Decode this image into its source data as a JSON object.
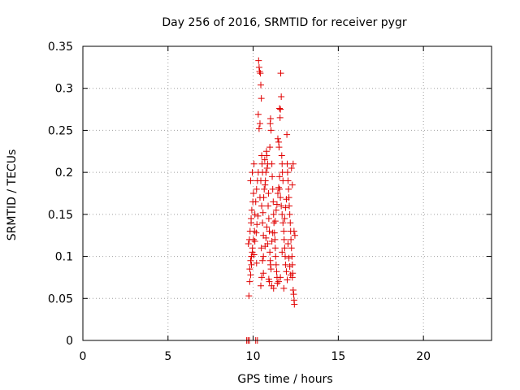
{
  "colors": {
    "series": "#e00000",
    "grid": "#a0a0a0",
    "axis": "#000000"
  },
  "chart_data": {
    "type": "scatter",
    "title": "Day 256 of 2016, SRMTID for receiver pygr",
    "xlabel": "GPS time / hours",
    "ylabel": "SRMTID / TECUs",
    "xlim": [
      0,
      24
    ],
    "ylim": [
      0,
      0.35
    ],
    "xticks": [
      0,
      5,
      10,
      15,
      20
    ],
    "xtick_labels": [
      "0",
      "5",
      "10",
      "15",
      "20"
    ],
    "yticks": [
      0,
      0.05,
      0.1,
      0.15,
      0.2,
      0.25,
      0.3,
      0.35
    ],
    "ytick_labels": [
      "0",
      "0.05",
      "0.1",
      "0.15",
      "0.2",
      "0.25",
      "0.3",
      "0.35"
    ],
    "grid": true,
    "marker": "+",
    "series": [
      {
        "name": "SRMTID",
        "points": [
          [
            9.62,
            0.0
          ],
          [
            9.7,
            0.0
          ],
          [
            9.78,
            0.0
          ],
          [
            10.15,
            0.0
          ],
          [
            10.25,
            0.0
          ],
          [
            9.75,
            0.053
          ],
          [
            9.8,
            0.085
          ],
          [
            9.85,
            0.095
          ],
          [
            9.9,
            0.1
          ],
          [
            9.95,
            0.105
          ],
          [
            9.72,
            0.115
          ],
          [
            9.78,
            0.12
          ],
          [
            9.82,
            0.13
          ],
          [
            9.88,
            0.14
          ],
          [
            9.92,
            0.155
          ],
          [
            9.98,
            0.165
          ],
          [
            10.02,
            0.175
          ],
          [
            9.85,
            0.19
          ],
          [
            9.95,
            0.2
          ],
          [
            10.05,
            0.21
          ],
          [
            9.9,
            0.1
          ],
          [
            9.96,
            0.11
          ],
          [
            10.02,
            0.12
          ],
          [
            10.08,
            0.13
          ],
          [
            9.88,
            0.145
          ],
          [
            10.1,
            0.15
          ],
          [
            10.15,
            0.165
          ],
          [
            10.2,
            0.18
          ],
          [
            10.25,
            0.19
          ],
          [
            10.3,
            0.2
          ],
          [
            10.32,
            0.333
          ],
          [
            10.35,
            0.325
          ],
          [
            10.38,
            0.32
          ],
          [
            10.42,
            0.318
          ],
          [
            10.45,
            0.304
          ],
          [
            10.3,
            0.269
          ],
          [
            10.4,
            0.258
          ],
          [
            10.35,
            0.252
          ],
          [
            10.48,
            0.288
          ],
          [
            10.5,
            0.22
          ],
          [
            10.52,
            0.21
          ],
          [
            10.55,
            0.2
          ],
          [
            10.45,
            0.19
          ],
          [
            10.4,
            0.17
          ],
          [
            10.5,
            0.16
          ],
          [
            10.55,
            0.14
          ],
          [
            10.6,
            0.125
          ],
          [
            10.48,
            0.11
          ],
          [
            10.55,
            0.095
          ],
          [
            10.6,
            0.08
          ],
          [
            10.5,
            0.075
          ],
          [
            10.45,
            0.065
          ],
          [
            10.58,
            0.152
          ],
          [
            10.62,
            0.17
          ],
          [
            10.65,
            0.18
          ],
          [
            10.7,
            0.185
          ],
          [
            10.72,
            0.19
          ],
          [
            10.75,
            0.2
          ],
          [
            10.68,
            0.215
          ],
          [
            10.78,
            0.225
          ],
          [
            10.8,
            0.22
          ],
          [
            10.82,
            0.205
          ],
          [
            10.85,
            0.21
          ],
          [
            10.9,
            0.175
          ],
          [
            10.88,
            0.16
          ],
          [
            10.92,
            0.145
          ],
          [
            10.95,
            0.13
          ],
          [
            10.85,
            0.115
          ],
          [
            10.98,
            0.105
          ],
          [
            11.0,
            0.095
          ],
          [
            11.02,
            0.09
          ],
          [
            11.05,
            0.085
          ],
          [
            10.95,
            0.07
          ],
          [
            11.08,
            0.065
          ],
          [
            10.92,
            0.073
          ],
          [
            11.0,
            0.258
          ],
          [
            11.02,
            0.264
          ],
          [
            11.05,
            0.25
          ],
          [
            10.98,
            0.23
          ],
          [
            11.1,
            0.21
          ],
          [
            11.12,
            0.195
          ],
          [
            11.15,
            0.18
          ],
          [
            11.18,
            0.165
          ],
          [
            11.2,
            0.15
          ],
          [
            11.22,
            0.14
          ],
          [
            11.25,
            0.128
          ],
          [
            11.28,
            0.12
          ],
          [
            11.3,
            0.11
          ],
          [
            11.32,
            0.1
          ],
          [
            11.35,
            0.09
          ],
          [
            11.38,
            0.082
          ],
          [
            11.4,
            0.075
          ],
          [
            11.42,
            0.068
          ],
          [
            11.2,
            0.062
          ],
          [
            11.5,
            0.07
          ],
          [
            11.45,
            0.24
          ],
          [
            11.5,
            0.236
          ],
          [
            11.52,
            0.23
          ],
          [
            11.55,
            0.276
          ],
          [
            11.6,
            0.275
          ],
          [
            11.58,
            0.265
          ],
          [
            11.62,
            0.318
          ],
          [
            11.65,
            0.29
          ],
          [
            11.68,
            0.22
          ],
          [
            11.7,
            0.21
          ],
          [
            11.72,
            0.2
          ],
          [
            11.75,
            0.19
          ],
          [
            11.55,
            0.18
          ],
          [
            11.6,
            0.17
          ],
          [
            11.65,
            0.16
          ],
          [
            11.7,
            0.15
          ],
          [
            11.75,
            0.14
          ],
          [
            11.8,
            0.13
          ],
          [
            11.82,
            0.12
          ],
          [
            11.85,
            0.11
          ],
          [
            11.88,
            0.1
          ],
          [
            11.9,
            0.09
          ],
          [
            11.95,
            0.082
          ],
          [
            11.6,
            0.075
          ],
          [
            11.7,
            0.105
          ],
          [
            11.98,
            0.245
          ],
          [
            12.0,
            0.21
          ],
          [
            12.02,
            0.2
          ],
          [
            12.05,
            0.19
          ],
          [
            12.08,
            0.18
          ],
          [
            12.1,
            0.17
          ],
          [
            12.12,
            0.16
          ],
          [
            12.15,
            0.15
          ],
          [
            12.18,
            0.14
          ],
          [
            12.2,
            0.13
          ],
          [
            12.22,
            0.12
          ],
          [
            12.25,
            0.11
          ],
          [
            12.28,
            0.1
          ],
          [
            12.3,
            0.09
          ],
          [
            12.32,
            0.08
          ],
          [
            12.35,
            0.06
          ],
          [
            12.38,
            0.055
          ],
          [
            12.4,
            0.048
          ],
          [
            12.42,
            0.043
          ],
          [
            12.3,
            0.075
          ],
          [
            12.25,
            0.205
          ],
          [
            12.35,
            0.21
          ],
          [
            12.3,
            0.185
          ],
          [
            12.4,
            0.13
          ],
          [
            12.45,
            0.125
          ],
          [
            9.8,
            0.07
          ],
          [
            9.85,
            0.078
          ],
          [
            9.9,
            0.09
          ],
          [
            10.05,
            0.102
          ],
          [
            10.1,
            0.118
          ],
          [
            10.18,
            0.128
          ],
          [
            10.22,
            0.138
          ],
          [
            10.28,
            0.148
          ],
          [
            10.6,
            0.1
          ],
          [
            10.7,
            0.112
          ],
          [
            10.75,
            0.122
          ],
          [
            10.8,
            0.135
          ],
          [
            11.1,
            0.118
          ],
          [
            11.15,
            0.128
          ],
          [
            11.3,
            0.142
          ],
          [
            11.35,
            0.155
          ],
          [
            11.4,
            0.162
          ],
          [
            11.45,
            0.175
          ],
          [
            11.5,
            0.182
          ],
          [
            11.55,
            0.195
          ],
          [
            11.85,
            0.145
          ],
          [
            11.9,
            0.158
          ],
          [
            11.95,
            0.168
          ],
          [
            12.05,
            0.115
          ],
          [
            12.1,
            0.098
          ],
          [
            12.15,
            0.088
          ],
          [
            12.2,
            0.078
          ],
          [
            12.0,
            0.072
          ],
          [
            11.8,
            0.062
          ],
          [
            10.2,
            0.092
          ]
        ]
      }
    ]
  }
}
